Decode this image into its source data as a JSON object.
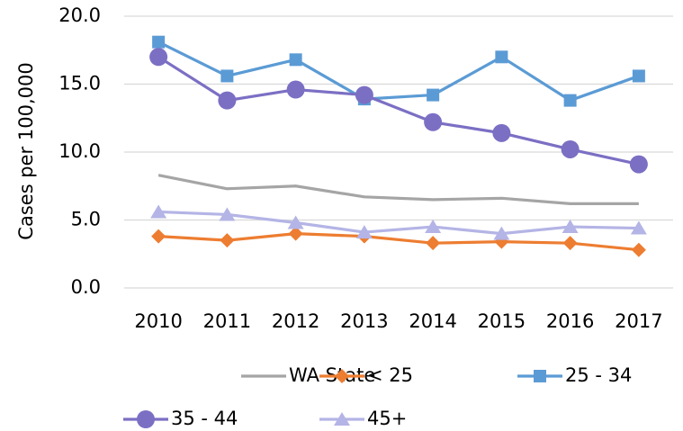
{
  "chart_data": {
    "type": "line",
    "y_label": "Cases per 100,000",
    "categories": [
      "2010",
      "2011",
      "2012",
      "2013",
      "2014",
      "2015",
      "2016",
      "2017"
    ],
    "series": [
      {
        "name": "WA State",
        "color": "#a5a5a5",
        "marker": "none",
        "values": [
          8.3,
          7.3,
          7.5,
          6.7,
          6.5,
          6.6,
          6.2,
          6.2
        ]
      },
      {
        "name": "< 25",
        "color": "#ed7d31",
        "marker": "diamond",
        "values": [
          3.8,
          3.5,
          4.0,
          3.8,
          3.3,
          3.4,
          3.3,
          2.8
        ]
      },
      {
        "name": "25 - 34",
        "color": "#5b9bd5",
        "marker": "square",
        "values": [
          18.1,
          15.6,
          16.8,
          13.9,
          14.2,
          17.0,
          13.8,
          15.6
        ]
      },
      {
        "name": "35 - 44",
        "color": "#7b6fc4",
        "marker": "circle",
        "values": [
          17.0,
          13.8,
          14.6,
          14.2,
          12.2,
          11.4,
          10.2,
          9.1
        ]
      },
      {
        "name": "45+",
        "color": "#b4b4e6",
        "marker": "triangle",
        "values": [
          5.6,
          5.4,
          4.8,
          4.1,
          4.5,
          4.0,
          4.5,
          4.4
        ]
      }
    ],
    "ylim": [
      0,
      20
    ],
    "yticks": [
      {
        "value": 0,
        "label": "0.0"
      },
      {
        "value": 5,
        "label": "5.0"
      },
      {
        "value": 10,
        "label": "10.0"
      },
      {
        "value": 15,
        "label": "15.0"
      },
      {
        "value": 20,
        "label": "20.0"
      }
    ],
    "grid": true,
    "legend": "bottom"
  }
}
